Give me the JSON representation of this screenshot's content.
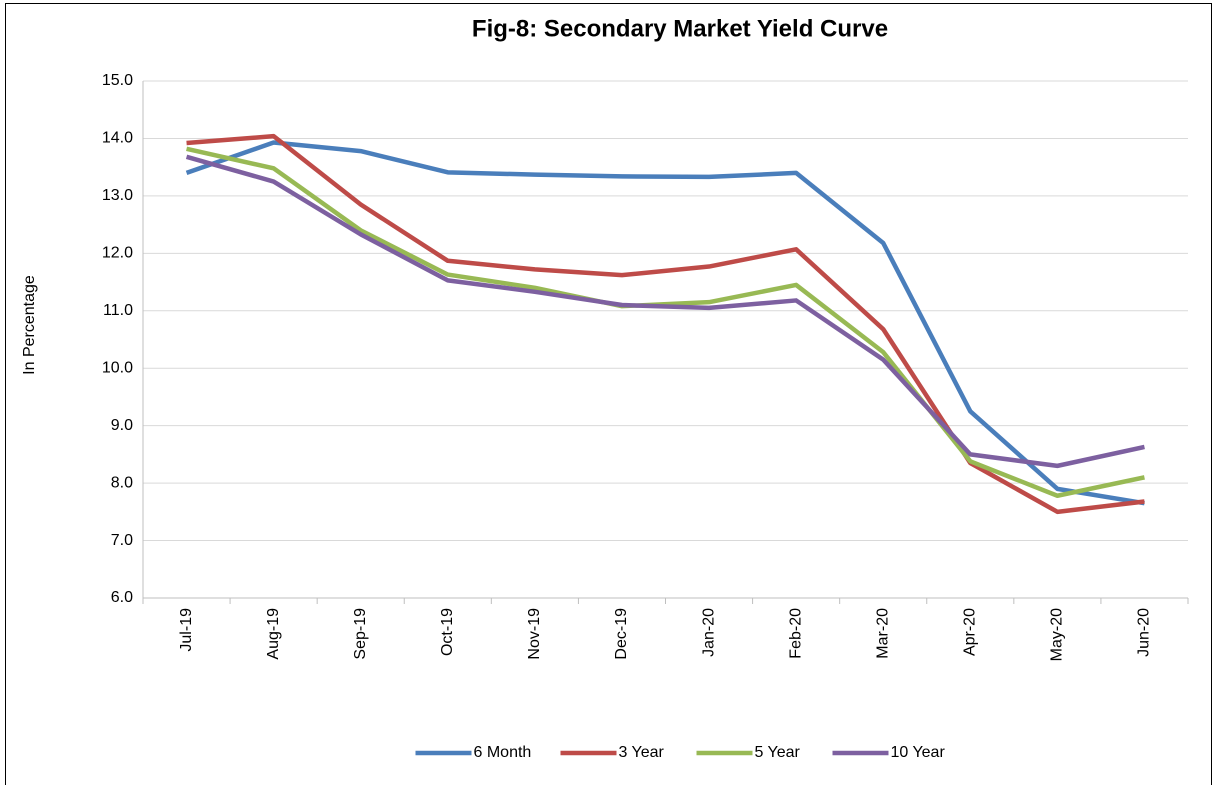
{
  "chart_data": {
    "type": "line",
    "title": "Fig-8: Secondary Market Yield Curve",
    "y_label": "In Percentage",
    "categories": [
      "Jul-19",
      "Aug-19",
      "Sep-19",
      "Oct-19",
      "Nov-19",
      "Dec-19",
      "Jan-20",
      "Feb-20",
      "Mar-20",
      "Apr-20",
      "May-20",
      "Jun-20"
    ],
    "series": [
      {
        "name": "6 Month",
        "color": "#4a7ebb",
        "values": [
          13.4,
          13.93,
          13.78,
          13.41,
          13.37,
          13.34,
          13.33,
          13.4,
          12.18,
          9.25,
          7.9,
          7.65
        ]
      },
      {
        "name": "3 Year",
        "color": "#be4b48",
        "values": [
          13.92,
          14.04,
          12.85,
          11.87,
          11.72,
          11.62,
          11.77,
          12.07,
          10.68,
          8.35,
          7.5,
          7.68
        ]
      },
      {
        "name": "5 Year",
        "color": "#98b954",
        "values": [
          13.82,
          13.48,
          12.4,
          11.63,
          11.4,
          11.08,
          11.15,
          11.45,
          10.28,
          8.38,
          7.78,
          8.1
        ]
      },
      {
        "name": "10 Year",
        "color": "#7d60a0",
        "values": [
          13.68,
          13.25,
          12.33,
          11.53,
          11.33,
          11.1,
          11.05,
          11.18,
          10.15,
          8.5,
          8.3,
          8.63
        ]
      }
    ],
    "ylim": [
      6,
      15
    ],
    "yticks": [
      {
        "value": 6,
        "label": "6.0"
      },
      {
        "value": 7,
        "label": "7.0"
      },
      {
        "value": 8,
        "label": "8.0"
      },
      {
        "value": 9,
        "label": "9.0"
      },
      {
        "value": 10,
        "label": "10.0"
      },
      {
        "value": 11,
        "label": "11.0"
      },
      {
        "value": 12,
        "label": "12.0"
      },
      {
        "value": 13,
        "label": "13.0"
      },
      {
        "value": 14,
        "label": "14.0"
      },
      {
        "value": 15,
        "label": "15.0"
      }
    ],
    "grid": true,
    "legend": "bottom"
  }
}
